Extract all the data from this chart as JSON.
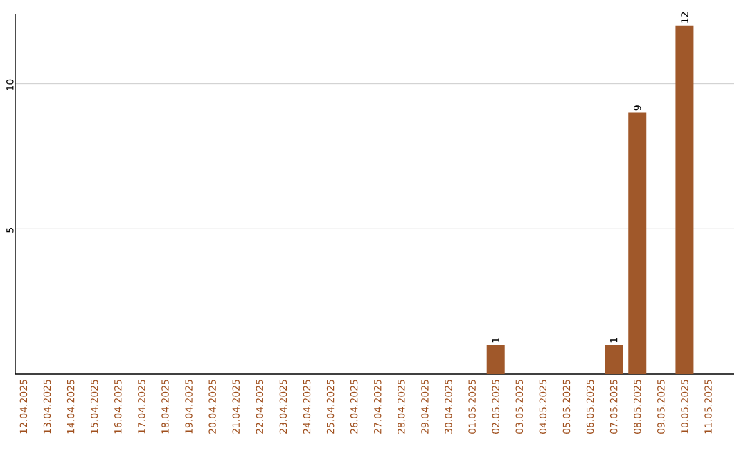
{
  "chart_data": {
    "type": "bar",
    "categories": [
      "12.04.2025",
      "13.04.2025",
      "14.04.2025",
      "15.04.2025",
      "16.04.2025",
      "17.04.2025",
      "18.04.2025",
      "19.04.2025",
      "20.04.2025",
      "21.04.2025",
      "22.04.2025",
      "23.04.2025",
      "24.04.2025",
      "25.04.2025",
      "26.04.2025",
      "27.04.2025",
      "28.04.2025",
      "29.04.2025",
      "30.04.2025",
      "01.05.2025",
      "02.05.2025",
      "03.05.2025",
      "04.05.2025",
      "05.05.2025",
      "06.05.2025",
      "07.05.2025",
      "08.05.2025",
      "09.05.2025",
      "10.05.2025",
      "11.05.2025"
    ],
    "values": [
      0,
      0,
      0,
      0,
      0,
      0,
      0,
      0,
      0,
      0,
      0,
      0,
      0,
      0,
      0,
      0,
      0,
      0,
      0,
      0,
      1,
      0,
      0,
      0,
      0,
      1,
      9,
      0,
      12,
      0
    ],
    "value_labels": [
      null,
      null,
      null,
      null,
      null,
      null,
      null,
      null,
      null,
      null,
      null,
      null,
      null,
      null,
      null,
      null,
      null,
      null,
      null,
      null,
      "1",
      null,
      null,
      null,
      null,
      "1",
      "9",
      null,
      "12",
      null
    ],
    "color": "#a0582a",
    "ylim": [
      0,
      12.4
    ],
    "yticks": [
      5,
      10
    ],
    "grid": "y"
  }
}
